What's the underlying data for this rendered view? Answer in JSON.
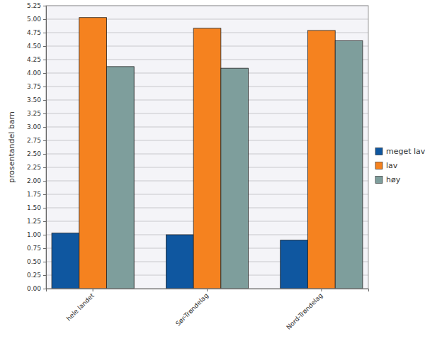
{
  "chart_data": {
    "type": "bar",
    "y_label": "prosentandel barn",
    "categories": [
      "hele landet",
      "Sør-Trøndelag",
      "Nord-Trøndelag"
    ],
    "series": [
      {
        "name": "meget lav",
        "color": "#0f57a0",
        "values": [
          1.03,
          1.0,
          0.9
        ]
      },
      {
        "name": "lav",
        "color": "#f5821f",
        "values": [
          5.03,
          4.83,
          4.79
        ]
      },
      {
        "name": "høy",
        "color": "#7e9e9c",
        "values": [
          4.12,
          4.09,
          4.6
        ]
      }
    ],
    "ylim": [
      0,
      5.25
    ],
    "yticks": [
      {
        "value": 0,
        "label": "0.00"
      },
      0.25,
      {
        "value": 0.5,
        "label": "0.50"
      },
      0.75,
      {
        "value": 1,
        "label": "1.00"
      },
      1.25,
      {
        "value": 1.5,
        "label": "1.50"
      },
      1.75,
      {
        "value": 2,
        "label": "2.00"
      },
      2.25,
      {
        "value": 2.5,
        "label": "2.50"
      },
      2.75,
      {
        "value": 3,
        "label": "3.00"
      },
      3.25,
      {
        "value": 3.5,
        "label": "3.50"
      },
      3.75,
      {
        "value": 4,
        "label": "4.00"
      },
      4.25,
      {
        "value": 4.5,
        "label": "4.50"
      },
      4.75,
      {
        "value": 5,
        "label": "5.00"
      },
      5.25
    ],
    "grid": true,
    "legend": "right"
  }
}
